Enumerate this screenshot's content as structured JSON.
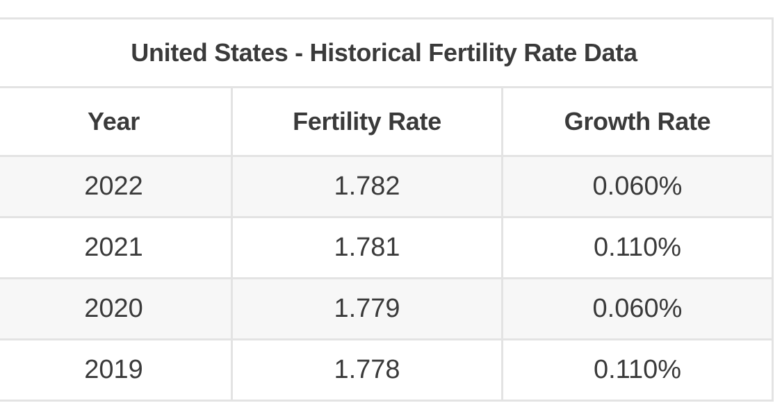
{
  "table": {
    "title": "United States - Historical Fertility Rate Data",
    "columns": [
      "Year",
      "Fertility Rate",
      "Growth Rate"
    ],
    "rows": [
      [
        "2022",
        "1.782",
        "0.060%"
      ],
      [
        "2021",
        "1.781",
        "0.110%"
      ],
      [
        "2020",
        "1.779",
        "0.060%"
      ],
      [
        "2019",
        "1.778",
        "0.110%"
      ]
    ]
  },
  "colors": {
    "text": "#3a3a3a",
    "border": "#e3e3e3",
    "shaded_row": "#f7f7f7"
  }
}
